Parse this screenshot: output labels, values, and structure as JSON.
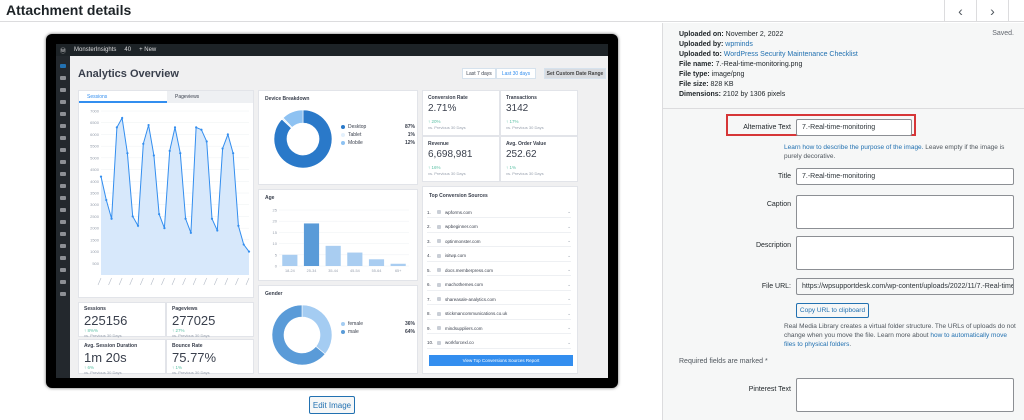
{
  "header": {
    "title": "Attachment details",
    "prev_icon": "chevron-left-icon",
    "next_icon": "chevron-right-icon",
    "close_icon": "close-icon"
  },
  "preview": {
    "edit_label": "Edit Image",
    "screenshot": {
      "wp_bar": {
        "site": "MonsterInsights",
        "comments": "40",
        "new": "+ New"
      },
      "heading": "Analytics Overview",
      "range_buttons": [
        "Last 7 days",
        "Last 30 days"
      ],
      "custom_range": "Set Custom Date Range",
      "tabs": [
        "Sessions",
        "Pageviews"
      ],
      "y_ticks": [
        "7000",
        "6500",
        "6000",
        "5500",
        "5000",
        "4500",
        "4000",
        "3500",
        "3000",
        "2500",
        "2000",
        "1500",
        "1000",
        "500"
      ],
      "line_values": [
        4200,
        3200,
        2400,
        6300,
        6700,
        5200,
        2500,
        2100,
        5600,
        6400,
        5100,
        2600,
        2000,
        5300,
        6300,
        5200,
        2400,
        1800,
        6300,
        6200,
        5700,
        2400,
        1900,
        5400,
        6000,
        5200,
        2100,
        1300,
        1000
      ],
      "device": {
        "title": "Device Breakdown",
        "items": [
          {
            "label": "Desktop",
            "value": "87%"
          },
          {
            "label": "Tablet",
            "value": "1%"
          },
          {
            "label": "Mobile",
            "value": "12%"
          }
        ],
        "values": [
          87,
          1,
          12
        ]
      },
      "age": {
        "title": "Age",
        "categories": [
          "18-24",
          "25-34",
          "35-44",
          "45-54",
          "55-64",
          "65+"
        ],
        "values": [
          5,
          19,
          9,
          6,
          3,
          1
        ],
        "ticks": [
          "25",
          "20",
          "15",
          "10",
          "5",
          "0"
        ]
      },
      "gender": {
        "title": "Gender",
        "items": [
          {
            "label": "female",
            "value": "36%"
          },
          {
            "label": "male",
            "value": "64%"
          }
        ],
        "values": [
          36,
          64
        ]
      },
      "stats": [
        {
          "label": "Sessions",
          "value": "225156",
          "change": "↑ 8%%",
          "note": "vs. Previous 30 Days"
        },
        {
          "label": "Pageviews",
          "value": "277025",
          "change": "↑ 27%",
          "note": "vs. Previous 30 Days"
        },
        {
          "label": "Avg. Session Duration",
          "value": "1m 20s",
          "change": "↑ 6%",
          "note": "vs. Previous 30 Days"
        },
        {
          "label": "Bounce Rate",
          "value": "75.77%",
          "change": "↑ 1%",
          "note": "vs. Previous 30 Days"
        }
      ],
      "ecom": [
        {
          "label": "Conversion Rate",
          "value": "2.71%",
          "change": "↑ 20%",
          "note": "vs. Previous 30 Days"
        },
        {
          "label": "Transactions",
          "value": "3142",
          "change": "↑ 17%",
          "note": "vs. Previous 30 Days"
        },
        {
          "label": "Revenue",
          "value": "6,698,981",
          "change": "↑ 16%",
          "note": "vs. Previous 30 Days"
        },
        {
          "label": "Avg. Order Value",
          "value": "252.62",
          "change": "↑ 1%",
          "note": "vs. Previous 30 Days"
        }
      ],
      "sources": {
        "title": "Top Conversion Sources",
        "items": [
          "wpforms.com",
          "wpbeginner.com",
          "optinmonster.com",
          "isitwp.com",
          "docs.memberpress.com",
          "machothemes.com",
          "shareasale-analytics.com",
          "stickmancommunications.co.uk",
          "mindsuppliers.com",
          "workforcexl.co"
        ],
        "button": "View Top Conversions Sources Report"
      }
    }
  },
  "details": {
    "saved": "Saved.",
    "uploaded_on_label": "Uploaded on:",
    "uploaded_on": "November 2, 2022",
    "uploaded_by_label": "Uploaded by:",
    "uploaded_by": "wpminds",
    "uploaded_to_label": "Uploaded to:",
    "uploaded_to": "WordPress Security Maintenance Checklist",
    "file_name_label": "File name:",
    "file_name": "7.-Real-time-monitoring.png",
    "file_type_label": "File type:",
    "file_type": "image/png",
    "file_size_label": "File size:",
    "file_size": "828 KB",
    "dimensions_label": "Dimensions:",
    "dimensions": "2102 by 1306 pixels"
  },
  "form": {
    "alt_label": "Alternative Text",
    "alt_value": "7.-Real-time-monitoring",
    "alt_help_link": "Learn how to describe the purpose of the image.",
    "alt_help_rest": " Leave empty if the image is purely decorative.",
    "title_label": "Title",
    "title_value": "7.-Real-time-monitoring",
    "caption_label": "Caption",
    "description_label": "Description",
    "url_label": "File URL:",
    "url_value": "https://wpsupportdesk.com/wp-content/uploads/2022/11/7.-Real-time",
    "copy_label": "Copy URL to clipboard",
    "rml_text": "Real Media Library creates a virtual folder structure. The URLs of uploads do not change when you move the file. Learn more about ",
    "rml_link": "how to automatically move files to physical folders",
    "rml_end": ".",
    "required_note": "Required fields are marked *",
    "pinterest_label": "Pinterest Text"
  }
}
